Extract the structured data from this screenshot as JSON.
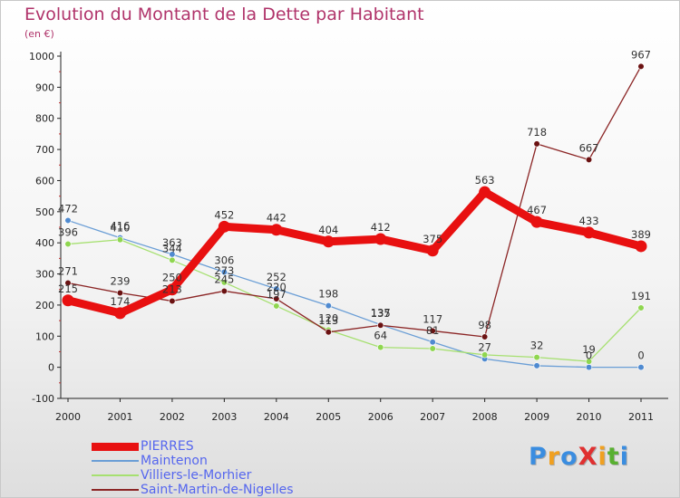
{
  "title": "Evolution du Montant de la Dette par Habitant",
  "subtitle": "(en €)",
  "logo": {
    "text": "ProXiti",
    "letters": [
      {
        "ch": "P",
        "color": "#3a8de0"
      },
      {
        "ch": "r",
        "color": "#f0a020"
      },
      {
        "ch": "o",
        "color": "#3a8de0"
      },
      {
        "ch": "X",
        "color": "#e03030"
      },
      {
        "ch": "i",
        "color": "#f0a020"
      },
      {
        "ch": "t",
        "color": "#58b030"
      },
      {
        "ch": "i",
        "color": "#3a8de0"
      }
    ]
  },
  "chart_data": {
    "type": "line",
    "x": [
      "2000",
      "2001",
      "2002",
      "2003",
      "2004",
      "2005",
      "2006",
      "2007",
      "2008",
      "2009",
      "2010",
      "2011"
    ],
    "ylim": [
      -100,
      1000
    ],
    "yticks": [
      -100,
      0,
      100,
      200,
      300,
      400,
      500,
      600,
      700,
      800,
      900,
      1000
    ],
    "grid": false,
    "legend_position": "bottom-left",
    "series": [
      {
        "name": "PIERRES",
        "color": "#e81010",
        "marker_color": "#e81010",
        "thick": true,
        "values": [
          215,
          174,
          250,
          452,
          442,
          404,
          412,
          375,
          563,
          467,
          433,
          389
        ]
      },
      {
        "name": "Maintenon",
        "color": "#6a9ed6",
        "marker_color": "#4f8ad0",
        "thick": false,
        "values": [
          472,
          416,
          363,
          306,
          252,
          198,
          137,
          81,
          27,
          5,
          0,
          0
        ],
        "labels": [
          "472",
          "416",
          "363",
          "306",
          "252",
          "198",
          "137",
          "81",
          "27",
          "",
          "0",
          "0"
        ]
      },
      {
        "name": "Villiers-le-Morhier",
        "color": "#a6e070",
        "marker_color": "#8fd650",
        "thick": false,
        "values": [
          396,
          410,
          344,
          273,
          197,
          120,
          64,
          60,
          40,
          32,
          19,
          191
        ],
        "labels": [
          "396",
          "410",
          "344",
          "273",
          "197",
          "120",
          "64",
          "",
          "",
          "32",
          "19",
          "191"
        ]
      },
      {
        "name": "Saint-Martin-de-Nigelles",
        "color": "#8b2525",
        "marker_color": "#6b1212",
        "thick": false,
        "values": [
          271,
          239,
          213,
          245,
          220,
          113,
          135,
          117,
          98,
          718,
          667,
          967
        ],
        "labels": [
          "271",
          "239",
          "213",
          "245",
          "220",
          "113",
          "135",
          "117",
          "98",
          "718",
          "667",
          "967"
        ]
      }
    ]
  }
}
